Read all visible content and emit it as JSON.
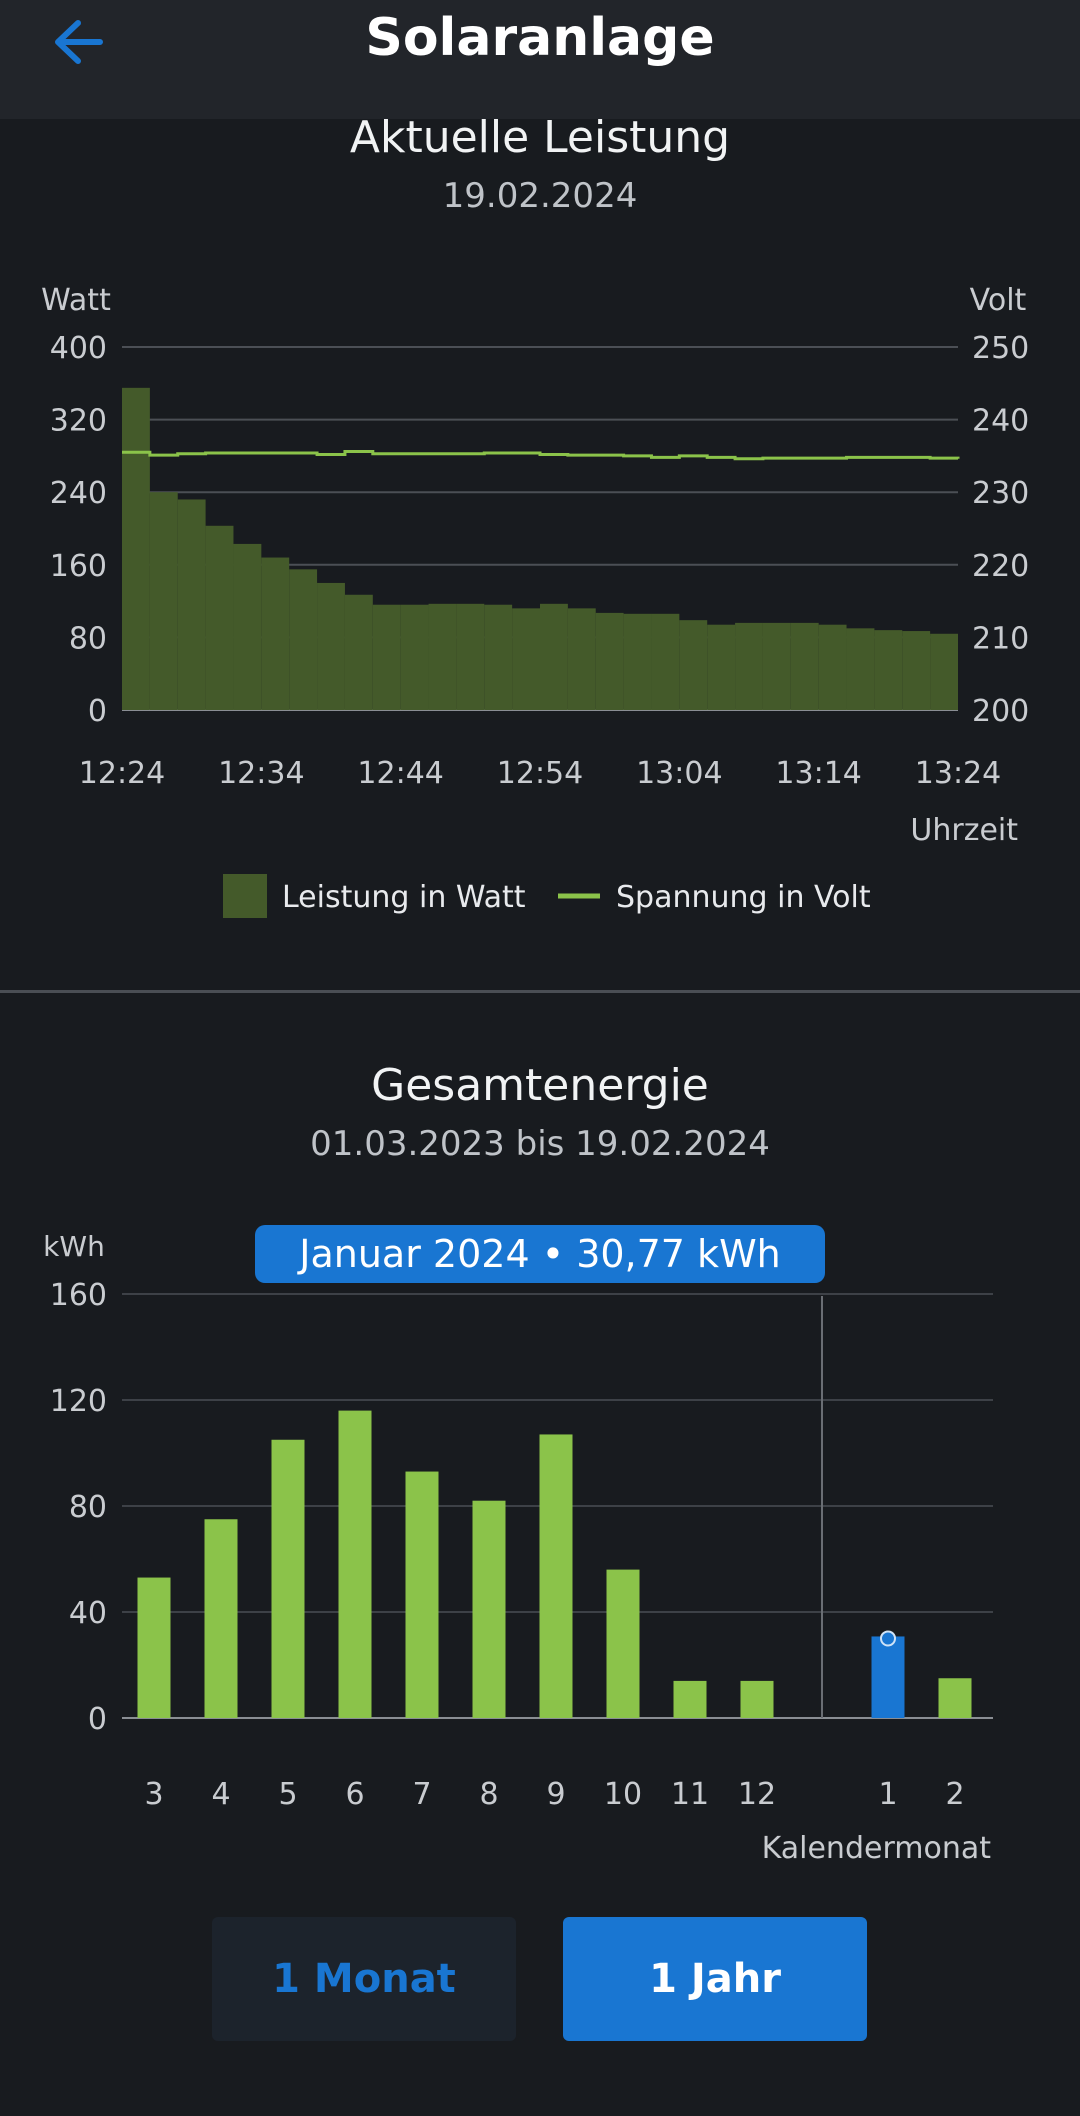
{
  "app": {
    "title": "Solaranlage"
  },
  "power_section": {
    "title": "Aktuelle Leistung",
    "date": "19.02.2024"
  },
  "energy_section": {
    "title": "Gesamtenergie",
    "range": "01.03.2023 bis 19.02.2024",
    "tooltip": "Januar 2024 • 30,77 kWh"
  },
  "buttons": {
    "month": "1 Monat",
    "year": "1 Jahr"
  },
  "colors": {
    "background": "#181b1f",
    "appbar": "#22252a",
    "power_fill": "#445a2a",
    "voltage_line": "#8bc34a",
    "energy_bar": "#8bc34a",
    "highlight": "#1976d2"
  },
  "icons": {
    "back": "arrow-left-icon"
  },
  "chart_data": [
    {
      "type": "bar",
      "xlabel": "Uhrzeit",
      "ylabel": "Watt",
      "y2label": "Volt",
      "ylim": [
        0,
        400
      ],
      "y2lim": [
        200,
        250
      ],
      "yticks": [
        "0",
        "80",
        "160",
        "240",
        "320",
        "400"
      ],
      "y2ticks": [
        "200",
        "210",
        "220",
        "230",
        "240",
        "250"
      ],
      "xticks": [
        "12:24",
        "12:34",
        "12:44",
        "12:54",
        "13:04",
        "13:14",
        "13:24"
      ],
      "grid": true,
      "legend": "bottom",
      "series": [
        {
          "name": "Leistung in Watt",
          "type": "bar",
          "axis": "left",
          "x": [
            "12:24",
            "12:26",
            "12:28",
            "12:30",
            "12:32",
            "12:34",
            "12:36",
            "12:38",
            "12:40",
            "12:42",
            "12:44",
            "12:46",
            "12:48",
            "12:50",
            "12:52",
            "12:54",
            "12:56",
            "12:58",
            "13:00",
            "13:02",
            "13:04",
            "13:06",
            "13:08",
            "13:10",
            "13:12",
            "13:14",
            "13:16",
            "13:18",
            "13:20",
            "13:22"
          ],
          "values": [
            355,
            240,
            232,
            203,
            183,
            168,
            155,
            140,
            127,
            116,
            116,
            117,
            117,
            116,
            112,
            117,
            112,
            107,
            106,
            106,
            99,
            94,
            96,
            96,
            96,
            94,
            90,
            88,
            87,
            84
          ]
        },
        {
          "name": "Spannung in Volt",
          "type": "line",
          "axis": "right",
          "x": [
            "12:24",
            "12:26",
            "12:28",
            "12:30",
            "12:32",
            "12:34",
            "12:36",
            "12:38",
            "12:40",
            "12:42",
            "12:44",
            "12:46",
            "12:48",
            "12:50",
            "12:52",
            "12:54",
            "12:56",
            "12:58",
            "13:00",
            "13:02",
            "13:04",
            "13:06",
            "13:08",
            "13:10",
            "13:12",
            "13:14",
            "13:16",
            "13:18",
            "13:20",
            "13:22",
            "13:24"
          ],
          "values": [
            235.5,
            235.1,
            235.3,
            235.4,
            235.4,
            235.4,
            235.4,
            235.2,
            235.6,
            235.3,
            235.3,
            235.3,
            235.3,
            235.4,
            235.4,
            235.2,
            235.1,
            235.1,
            235.0,
            234.8,
            235.0,
            234.8,
            234.6,
            234.7,
            234.7,
            234.7,
            234.8,
            234.8,
            234.8,
            234.7,
            234.6
          ]
        }
      ]
    },
    {
      "type": "bar",
      "xlabel": "Kalendermonat",
      "ylabel": "kWh",
      "ylim": [
        0,
        160
      ],
      "yticks": [
        "0",
        "40",
        "80",
        "120",
        "160"
      ],
      "grid": true,
      "categories": [
        "3",
        "4",
        "5",
        "6",
        "7",
        "8",
        "9",
        "10",
        "11",
        "12",
        "1",
        "2"
      ],
      "values": [
        53,
        75,
        105,
        116,
        93,
        82,
        107,
        56,
        14,
        14,
        30.77,
        15
      ],
      "highlighted_category": "1"
    }
  ]
}
